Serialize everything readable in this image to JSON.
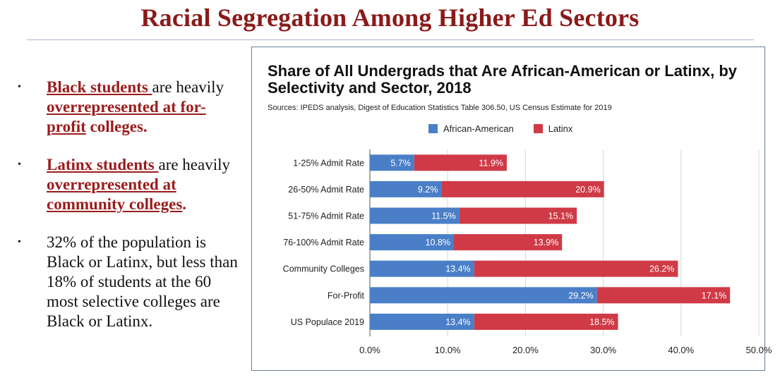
{
  "slide": {
    "title": "Racial Segregation Among Higher Ed Sectors",
    "bullets": [
      {
        "a": "Black students ",
        "b": "are heavily ",
        "c": "overrepresented at for-profit",
        "d": " colleges."
      },
      {
        "a": "Latinx students ",
        "b": "are heavily ",
        "c": "overrepresented at community colleges",
        "d": "."
      },
      {
        "text": "32% of the population is Black or Latinx, but less than 18% of students at the 60 most selective colleges are Black or Latinx."
      }
    ],
    "bullet_glyph": "•"
  },
  "chart_data": {
    "type": "bar",
    "orientation": "horizontal",
    "stacked": true,
    "title": "Share of All Undergrads that Are African-American or Latinx, by Selectivity and Sector, 2018",
    "subtitle": "Sources:  IPEDS analysis, Digest of Education Statistics Table 306.50, US Census Estimate for 2019",
    "categories": [
      "1-25% Admit Rate",
      "26-50% Admit Rate",
      "51-75% Admit Rate",
      "76-100% Admit Rate",
      "Community Colleges",
      "For-Profit",
      "US Populace 2019"
    ],
    "series": [
      {
        "name": "African-American",
        "color": "#4a7fc8",
        "values": [
          5.7,
          9.2,
          11.5,
          10.8,
          13.4,
          29.2,
          13.4
        ],
        "labels": [
          "5.7%",
          "9.2%",
          "11.5%",
          "10.8%",
          "13.4%",
          "29.2%",
          "13.4%"
        ]
      },
      {
        "name": "Latinx",
        "color": "#cf3a46",
        "values": [
          11.9,
          20.9,
          15.1,
          13.9,
          26.2,
          17.1,
          18.5
        ],
        "labels": [
          "11.9%",
          "20.9%",
          "15.1%",
          "13.9%",
          "26.2%",
          "17.1%",
          "18.5%"
        ]
      }
    ],
    "xlim": [
      0,
      50
    ],
    "xticks": [
      0,
      10,
      20,
      30,
      40,
      50
    ],
    "xtick_labels": [
      "0.0%",
      "10.0%",
      "20.0%",
      "30.0%",
      "40.0%",
      "50.0%"
    ],
    "grid": true,
    "legend_position": "top"
  }
}
